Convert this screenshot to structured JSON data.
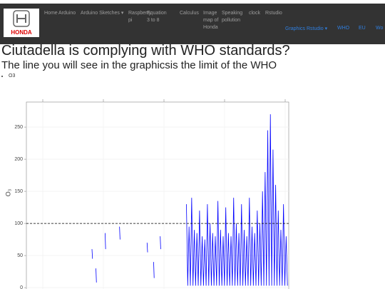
{
  "navbar": {
    "logo_text": "HONDA",
    "items": [
      "Home",
      "Arduino",
      "Arduino Sketches",
      "Raspberry pi",
      "Equation 3 to 8",
      "Calculus",
      "Image map of Honda",
      "Speaking pollution",
      "clock",
      "Rstudio"
    ],
    "right_items": [
      "Graphics Rstudio",
      "WHO",
      "EU",
      "Wo"
    ]
  },
  "heading": "Ciutadella is complying with WHO standards?",
  "subheading": "The line you will see in the graphicsis the limit of the WHO",
  "bullets": [
    "O3"
  ],
  "chart_data": {
    "type": "line",
    "ylabel": "O₃",
    "x": [
      25,
      25.2,
      25.3,
      26.5,
      26.7,
      26.8,
      30,
      30.2,
      30.3,
      35.5,
      35.7,
      35.8,
      46,
      46.2,
      46.3,
      48.5,
      48.7,
      48.8,
      51,
      51.2,
      51.3,
      61,
      61.5,
      62,
      62.5,
      63,
      63.5,
      64,
      64.5,
      65,
      65.5,
      66,
      66.5,
      67,
      67.5,
      68,
      68.5,
      69,
      69.5,
      70,
      70.5,
      71,
      71.5,
      72,
      72.5,
      73,
      73.5,
      74,
      74.5,
      75,
      75.5,
      76,
      76.5,
      77,
      77.5,
      78,
      78.5,
      79,
      79.5,
      80,
      80.5,
      81,
      81.5,
      82,
      82.5,
      83,
      83.5,
      84,
      84.5,
      85,
      85.5,
      86,
      86.5,
      87,
      87.5,
      88,
      88.5,
      89,
      89.5,
      90,
      90.5,
      91,
      91.5,
      92,
      92.5,
      93,
      93.5,
      94,
      94.5,
      95,
      95.5,
      96,
      96.5,
      97,
      97.5,
      98,
      98.5,
      99,
      99.5
    ],
    "series": [
      {
        "color": "#0000ff",
        "values": [
          60,
          45,
          null,
          30,
          8,
          null,
          85,
          60,
          null,
          95,
          75,
          null,
          70,
          55,
          null,
          40,
          15,
          null,
          80,
          60,
          null,
          130,
          3,
          95,
          3,
          140,
          3,
          90,
          3,
          85,
          3,
          120,
          3,
          80,
          3,
          75,
          3,
          130,
          3,
          100,
          3,
          85,
          3,
          80,
          3,
          135,
          3,
          90,
          3,
          80,
          3,
          125,
          3,
          85,
          3,
          80,
          3,
          140,
          3,
          100,
          3,
          85,
          3,
          130,
          3,
          90,
          3,
          80,
          3,
          140,
          3,
          95,
          3,
          85,
          3,
          120,
          3,
          100,
          3,
          150,
          3,
          180,
          3,
          245,
          3,
          270,
          3,
          215,
          3,
          160,
          3,
          120,
          3,
          90,
          3,
          130,
          3,
          80,
          3
        ]
      }
    ],
    "xlim": [
      0,
      100
    ],
    "ylim": [
      -3,
      289
    ],
    "yticks": [
      0,
      50,
      100,
      150,
      200,
      250
    ],
    "hline": 100,
    "hline_color": "#000000",
    "grid": true
  }
}
